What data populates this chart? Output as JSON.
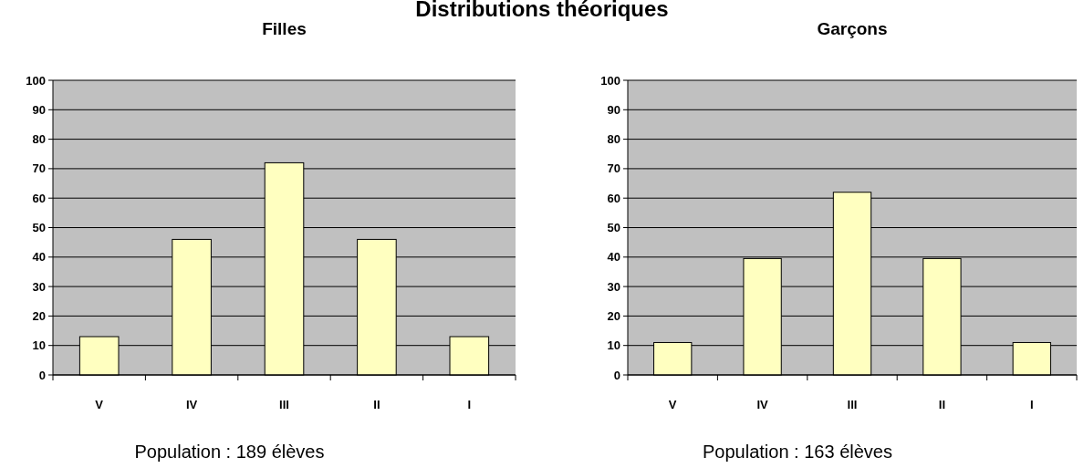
{
  "chart_data": [
    {
      "type": "other",
      "title": "Distributions théoriques"
    },
    {
      "type": "bar",
      "title": "Filles",
      "categories": [
        "V",
        "IV",
        "III",
        "II",
        "I"
      ],
      "values": [
        13,
        46,
        72,
        46,
        13
      ],
      "color": "#ffffc0",
      "ylim": [
        0,
        100
      ],
      "yticks": [
        0,
        10,
        20,
        30,
        40,
        50,
        60,
        70,
        80,
        90,
        100
      ],
      "grid": "y",
      "annotations": [
        "Population : 189 élèves"
      ]
    },
    {
      "type": "bar",
      "title": "Garçons",
      "categories": [
        "V",
        "IV",
        "III",
        "II",
        "I"
      ],
      "values": [
        11,
        39.5,
        62,
        39.5,
        11
      ],
      "color": "#ffffc0",
      "ylim": [
        0,
        100
      ],
      "yticks": [
        0,
        10,
        20,
        30,
        40,
        50,
        60,
        70,
        80,
        90,
        100
      ],
      "grid": "y",
      "annotations": [
        "Population : 163 élèves"
      ]
    }
  ]
}
